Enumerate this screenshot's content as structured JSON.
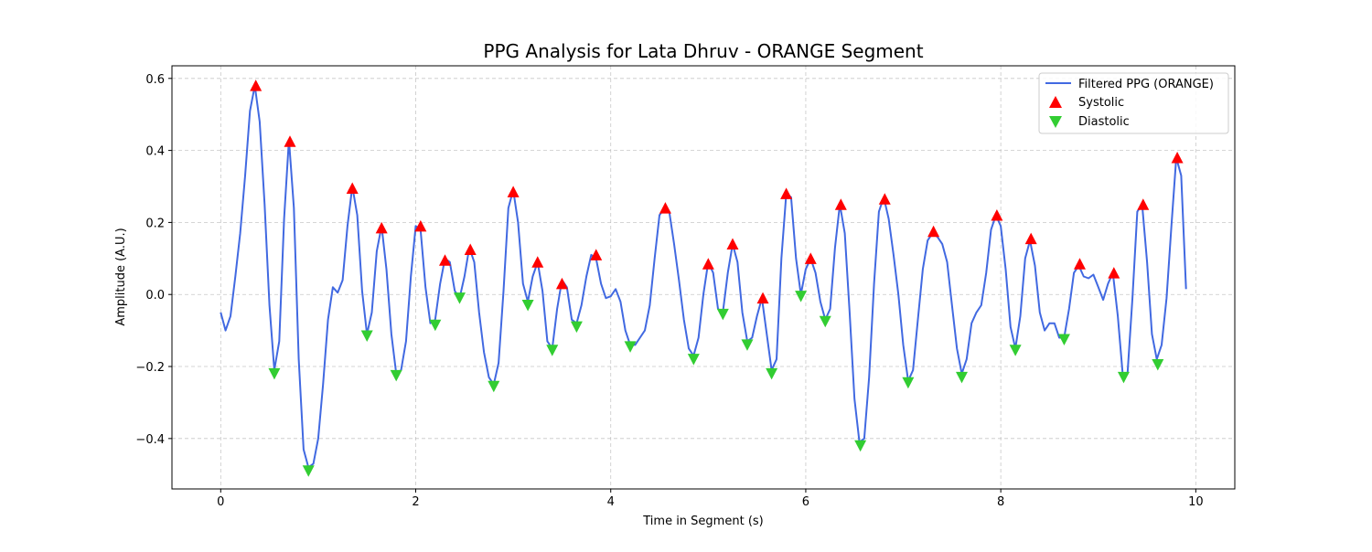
{
  "chart_data": {
    "type": "line",
    "title": "PPG Analysis for Lata Dhruv - ORANGE Segment",
    "xlabel": "Time in Segment (s)",
    "ylabel": "Amplitude (A.U.)",
    "xlim": [
      -0.5,
      10.4
    ],
    "ylim": [
      -0.54,
      0.635
    ],
    "x_ticks": [
      0,
      2,
      4,
      6,
      8,
      10
    ],
    "x_tick_labels": [
      "0",
      "2",
      "4",
      "6",
      "8",
      "10"
    ],
    "y_ticks": [
      -0.4,
      -0.2,
      0.0,
      0.2,
      0.4,
      0.6
    ],
    "y_tick_labels": [
      "−0.4",
      "−0.2",
      "0.0",
      "0.2",
      "0.4",
      "0.6"
    ],
    "grid": true,
    "legend_position": "top-right",
    "colors": {
      "line": "#4169e1",
      "systolic": "#ff0000",
      "diastolic": "#32cd32"
    },
    "series": [
      {
        "name": "Filtered PPG (ORANGE)",
        "kind": "line",
        "x": [
          0,
          0.05,
          0.1,
          0.15,
          0.2,
          0.25,
          0.3,
          0.35,
          0.4,
          0.45,
          0.5,
          0.55,
          0.6,
          0.65,
          0.7,
          0.75,
          0.8,
          0.85,
          0.9,
          0.95,
          1.0,
          1.05,
          1.1,
          1.15,
          1.2,
          1.25,
          1.3,
          1.35,
          1.4,
          1.45,
          1.5,
          1.55,
          1.6,
          1.65,
          1.7,
          1.75,
          1.8,
          1.85,
          1.9,
          1.95,
          2.0,
          2.05,
          2.1,
          2.15,
          2.2,
          2.25,
          2.3,
          2.35,
          2.4,
          2.45,
          2.5,
          2.55,
          2.6,
          2.65,
          2.7,
          2.75,
          2.8,
          2.85,
          2.9,
          2.95,
          3.0,
          3.05,
          3.1,
          3.15,
          3.2,
          3.25,
          3.3,
          3.35,
          3.4,
          3.45,
          3.5,
          3.55,
          3.6,
          3.65,
          3.7,
          3.75,
          3.8,
          3.85,
          3.9,
          3.95,
          4.0,
          4.05,
          4.1,
          4.15,
          4.2,
          4.25,
          4.3,
          4.35,
          4.4,
          4.45,
          4.5,
          4.55,
          4.6,
          4.65,
          4.7,
          4.75,
          4.8,
          4.85,
          4.9,
          4.95,
          5.0,
          5.05,
          5.1,
          5.15,
          5.2,
          5.25,
          5.3,
          5.35,
          5.4,
          5.45,
          5.5,
          5.55,
          5.6,
          5.65,
          5.7,
          5.75,
          5.8,
          5.85,
          5.9,
          5.95,
          6.0,
          6.05,
          6.1,
          6.15,
          6.2,
          6.25,
          6.3,
          6.35,
          6.4,
          6.45,
          6.5,
          6.55,
          6.6,
          6.65,
          6.7,
          6.75,
          6.8,
          6.85,
          6.9,
          6.95,
          7.0,
          7.05,
          7.1,
          7.15,
          7.2,
          7.25,
          7.3,
          7.35,
          7.4,
          7.45,
          7.5,
          7.55,
          7.6,
          7.65,
          7.7,
          7.75,
          7.8,
          7.85,
          7.9,
          7.95,
          8.0,
          8.05,
          8.1,
          8.15,
          8.2,
          8.25,
          8.3,
          8.35,
          8.4,
          8.45,
          8.5,
          8.55,
          8.6,
          8.65,
          8.7,
          8.75,
          8.8,
          8.85,
          8.9,
          8.95,
          9.0,
          9.05,
          9.1,
          9.15,
          9.2,
          9.25,
          9.3,
          9.35,
          9.4,
          9.45,
          9.5,
          9.55,
          9.6,
          9.65,
          9.7,
          9.75,
          9.8,
          9.85,
          9.9
        ],
        "y": [
          -0.05,
          -0.1,
          -0.06,
          0.05,
          0.17,
          0.33,
          0.51,
          0.58,
          0.48,
          0.25,
          -0.03,
          -0.21,
          -0.13,
          0.21,
          0.43,
          0.24,
          -0.18,
          -0.43,
          -0.48,
          -0.47,
          -0.4,
          -0.25,
          -0.07,
          0.02,
          0.005,
          0.04,
          0.19,
          0.3,
          0.22,
          0.01,
          -0.11,
          -0.05,
          0.12,
          0.19,
          0.07,
          -0.11,
          -0.22,
          -0.21,
          -0.13,
          0.05,
          0.19,
          0.18,
          0.02,
          -0.08,
          -0.07,
          0.03,
          0.1,
          0.09,
          0.01,
          -0.01,
          0.05,
          0.13,
          0.09,
          -0.05,
          -0.16,
          -0.23,
          -0.25,
          -0.19,
          0.01,
          0.24,
          0.29,
          0.2,
          0.03,
          -0.02,
          0.05,
          0.09,
          0.01,
          -0.13,
          -0.15,
          -0.04,
          0.04,
          0.02,
          -0.07,
          -0.08,
          -0.03,
          0.05,
          0.11,
          0.1,
          0.03,
          -0.01,
          -0.005,
          0.015,
          -0.02,
          -0.1,
          -0.14,
          -0.14,
          -0.12,
          -0.1,
          -0.03,
          0.1,
          0.22,
          0.24,
          0.23,
          0.14,
          0.04,
          -0.07,
          -0.15,
          -0.17,
          -0.12,
          0.0,
          0.09,
          0.06,
          -0.04,
          -0.05,
          0.06,
          0.14,
          0.09,
          -0.05,
          -0.13,
          -0.12,
          -0.06,
          -0.01,
          -0.11,
          -0.21,
          -0.18,
          0.1,
          0.28,
          0.27,
          0.1,
          0.0,
          0.07,
          0.1,
          0.06,
          -0.02,
          -0.07,
          -0.04,
          0.13,
          0.25,
          0.17,
          -0.05,
          -0.29,
          -0.41,
          -0.4,
          -0.23,
          0.03,
          0.23,
          0.27,
          0.21,
          0.11,
          0.0,
          -0.14,
          -0.24,
          -0.21,
          -0.07,
          0.07,
          0.15,
          0.17,
          0.16,
          0.14,
          0.09,
          -0.03,
          -0.15,
          -0.22,
          -0.18,
          -0.08,
          -0.05,
          -0.03,
          0.06,
          0.18,
          0.22,
          0.19,
          0.07,
          -0.09,
          -0.15,
          -0.06,
          0.1,
          0.15,
          0.08,
          -0.05,
          -0.1,
          -0.08,
          -0.08,
          -0.12,
          -0.12,
          -0.04,
          0.06,
          0.08,
          0.05,
          0.045,
          0.055,
          0.02,
          -0.015,
          0.03,
          0.06,
          -0.06,
          -0.22,
          -0.22,
          -0.01,
          0.23,
          0.25,
          0.09,
          -0.11,
          -0.18,
          -0.14,
          -0.01,
          0.19,
          0.38,
          0.33,
          0.015
        ]
      },
      {
        "name": "Systolic",
        "kind": "marker",
        "marker": "triangle-up",
        "x": [
          0.36,
          0.71,
          1.35,
          1.65,
          2.05,
          2.3,
          2.56,
          3.0,
          3.25,
          3.5,
          3.85,
          4.56,
          5.0,
          5.25,
          5.56,
          5.8,
          6.05,
          6.36,
          6.81,
          7.31,
          7.96,
          8.31,
          8.81,
          9.16,
          9.46,
          9.81
        ],
        "y": [
          0.58,
          0.425,
          0.295,
          0.185,
          0.19,
          0.095,
          0.125,
          0.285,
          0.09,
          0.03,
          0.11,
          0.24,
          0.085,
          0.14,
          -0.01,
          0.28,
          0.1,
          0.25,
          0.265,
          0.175,
          0.22,
          0.155,
          0.085,
          0.06,
          0.25,
          0.38
        ]
      },
      {
        "name": "Diastolic",
        "kind": "marker",
        "marker": "triangle-down",
        "x": [
          0.55,
          0.9,
          1.5,
          1.8,
          2.2,
          2.45,
          2.8,
          3.15,
          3.4,
          3.65,
          4.2,
          4.85,
          5.15,
          5.4,
          5.65,
          5.95,
          6.2,
          6.56,
          7.05,
          7.6,
          8.15,
          8.65,
          9.26,
          9.61
        ],
        "y": [
          -0.22,
          -0.49,
          -0.115,
          -0.225,
          -0.085,
          -0.01,
          -0.255,
          -0.03,
          -0.155,
          -0.09,
          -0.145,
          -0.18,
          -0.055,
          -0.14,
          -0.22,
          -0.005,
          -0.075,
          -0.42,
          -0.245,
          -0.23,
          -0.155,
          -0.125,
          -0.23,
          -0.195
        ]
      }
    ]
  }
}
